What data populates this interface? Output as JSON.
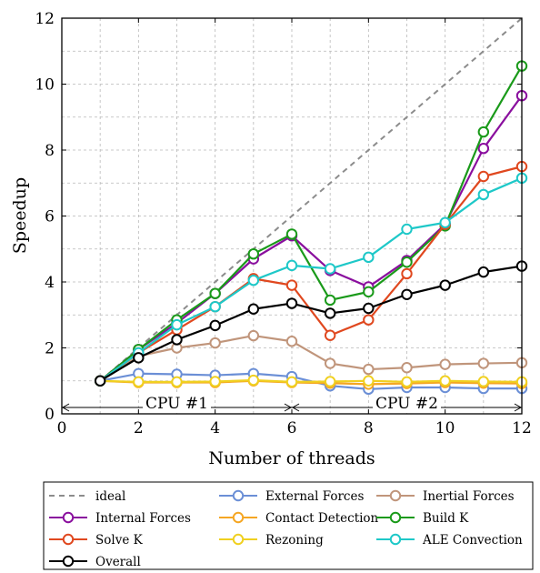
{
  "chart_data": {
    "type": "line",
    "title": "",
    "xlabel": "Number of threads",
    "ylabel": "Speedup",
    "xlim": [
      0,
      12
    ],
    "ylim": [
      0,
      12
    ],
    "xticks": [
      0,
      2,
      4,
      6,
      8,
      10,
      12
    ],
    "yticks": [
      0,
      2,
      4,
      6,
      8,
      10,
      12
    ],
    "grid": true,
    "legend_position": "below",
    "regions": [
      {
        "label": "CPU #1",
        "from": 0,
        "to": 6
      },
      {
        "label": "CPU #2",
        "from": 6,
        "to": 12
      }
    ],
    "x": [
      1,
      2,
      3,
      4,
      5,
      6,
      7,
      8,
      9,
      10,
      11,
      12
    ],
    "series": [
      {
        "name": "ideal",
        "color": "#8c8c8c",
        "style": "dashed",
        "markers": false,
        "values": [
          1,
          2,
          3,
          4,
          5,
          6,
          7,
          8,
          9,
          10,
          11,
          12
        ]
      },
      {
        "name": "External Forces",
        "color": "#6b8fd6",
        "style": "solid",
        "markers": true,
        "values": [
          1.0,
          1.22,
          1.2,
          1.17,
          1.22,
          1.13,
          0.85,
          0.75,
          0.8,
          0.8,
          0.77,
          0.77
        ]
      },
      {
        "name": "Inertial Forces",
        "color": "#c0957b",
        "style": "solid",
        "markers": true,
        "values": [
          1.0,
          1.75,
          2.0,
          2.15,
          2.37,
          2.2,
          1.53,
          1.35,
          1.4,
          1.5,
          1.53,
          1.55
        ]
      },
      {
        "name": "Internal Forces",
        "color": "#8a0f9e",
        "style": "solid",
        "markers": true,
        "values": [
          1.0,
          1.95,
          2.75,
          3.65,
          4.7,
          5.4,
          4.35,
          3.85,
          4.65,
          5.75,
          8.05,
          9.65
        ]
      },
      {
        "name": "Contact Detection",
        "color": "#f5a623",
        "style": "solid",
        "markers": true,
        "values": [
          1.0,
          0.95,
          0.95,
          0.95,
          1.0,
          0.95,
          0.93,
          0.9,
          0.92,
          0.95,
          0.93,
          0.92
        ]
      },
      {
        "name": "Build K",
        "color": "#1a9a1a",
        "style": "solid",
        "markers": true,
        "values": [
          1.0,
          1.95,
          2.85,
          3.65,
          4.85,
          5.45,
          3.45,
          3.7,
          4.6,
          5.7,
          8.55,
          10.55
        ]
      },
      {
        "name": "Solve K",
        "color": "#e0481f",
        "style": "solid",
        "markers": true,
        "values": [
          1.0,
          1.85,
          2.55,
          3.25,
          4.1,
          3.9,
          2.38,
          2.85,
          4.25,
          5.75,
          7.2,
          7.5
        ]
      },
      {
        "name": "Rezoning",
        "color": "#f0d020",
        "style": "solid",
        "markers": true,
        "values": [
          1.0,
          0.97,
          0.97,
          0.98,
          1.02,
          0.97,
          0.98,
          1.0,
          0.97,
          1.0,
          0.98,
          0.97
        ]
      },
      {
        "name": "ALE Convection",
        "color": "#1ec8c8",
        "style": "solid",
        "markers": true,
        "values": [
          1.0,
          1.85,
          2.7,
          3.25,
          4.05,
          4.5,
          4.4,
          4.75,
          5.6,
          5.8,
          6.65,
          7.15
        ]
      },
      {
        "name": "Overall",
        "color": "#000000",
        "style": "solid",
        "markers": true,
        "values": [
          1.0,
          1.7,
          2.25,
          2.68,
          3.18,
          3.35,
          3.05,
          3.2,
          3.62,
          3.9,
          4.3,
          4.48
        ]
      }
    ]
  }
}
